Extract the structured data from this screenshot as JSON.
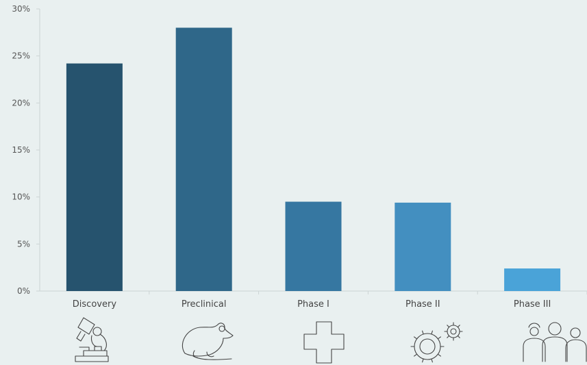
{
  "chart_data": {
    "type": "bar",
    "categories": [
      "Discovery",
      "Preclinical",
      "Phase I",
      "Phase II",
      "Phase III"
    ],
    "values": [
      24.2,
      28.0,
      9.5,
      9.4,
      2.4
    ],
    "ylim": [
      0,
      30
    ],
    "yticks": [
      0,
      5,
      10,
      15,
      20,
      25,
      30
    ],
    "ytick_labels": [
      "0%",
      "5%",
      "10%",
      "15%",
      "20%",
      "25%",
      "30%"
    ],
    "grid": false,
    "colors": [
      "#26536e",
      "#2f6789",
      "#3677a1",
      "#438fc0",
      "#4aa3d8"
    ],
    "icons": [
      "microscope-icon",
      "rat-icon",
      "medical-cross-icon",
      "gears-icon",
      "people-icon"
    ]
  }
}
